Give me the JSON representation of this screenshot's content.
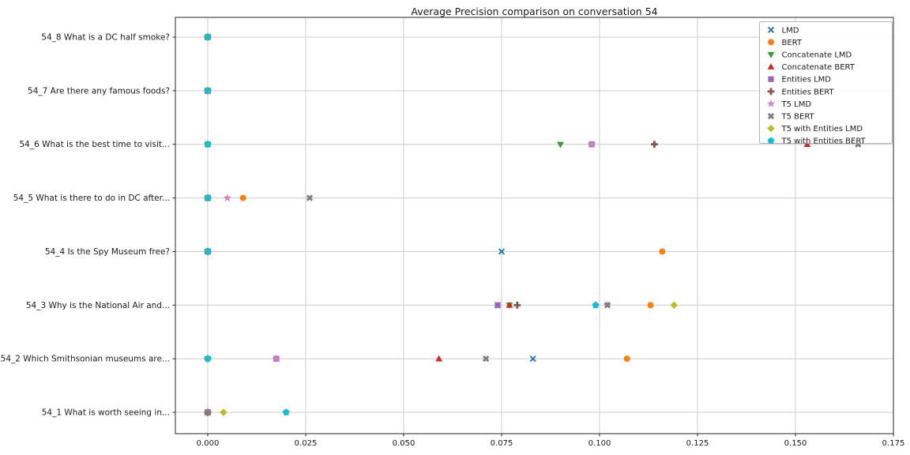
{
  "chart_data": {
    "type": "scatter",
    "title": "Average Precision comparison on conversation 54",
    "xlabel": "",
    "ylabel": "",
    "grid": true,
    "legend_position": "upper right",
    "xlim": [
      -0.0083,
      0.175
    ],
    "x_ticks": [
      0.0,
      0.025,
      0.05,
      0.075,
      0.1,
      0.125,
      0.15,
      0.175
    ],
    "x_tick_labels": [
      "0.000",
      "0.025",
      "0.050",
      "0.075",
      "0.100",
      "0.125",
      "0.150",
      "0.175"
    ],
    "categories_top_to_bottom": [
      "54_8 What is a DC half smoke?",
      "54_7 Are there any famous foods?",
      "54_6 What is the best time to visit...",
      "54_5 What is there to do in DC after...",
      "54_4 Is the Spy Museum free?",
      "54_3 Why is the National Air and...",
      "54_2 Which Smithsonian museums are...",
      "54_1 What is worth seeing in..."
    ],
    "series": [
      {
        "name": "LMD",
        "marker": "x",
        "color": "#1f77b4",
        "values": [
          0,
          0,
          0,
          0,
          0.075,
          0.074,
          0.083,
          0
        ]
      },
      {
        "name": "BERT",
        "marker": "circle",
        "color": "#ff7f0e",
        "values": [
          0,
          0,
          0,
          0.009,
          0.116,
          0.113,
          0.107,
          0
        ]
      },
      {
        "name": "Concatenate LMD",
        "marker": "triangle-down",
        "color": "#2ca02c",
        "values": [
          0,
          0,
          0.09,
          0,
          0,
          0.077,
          0,
          0
        ]
      },
      {
        "name": "Concatenate BERT",
        "marker": "triangle-up",
        "color": "#d62728",
        "values": [
          0,
          0,
          0.153,
          0,
          0,
          0.077,
          0.059,
          0
        ]
      },
      {
        "name": "Entities LMD",
        "marker": "square",
        "color": "#9467bd",
        "values": [
          0,
          0,
          0.098,
          0,
          0,
          0.074,
          0.0175,
          0
        ]
      },
      {
        "name": "Entities BERT",
        "marker": "plus",
        "color": "#8c564b",
        "values": [
          0,
          0,
          0.114,
          0,
          0,
          0.079,
          0,
          0
        ]
      },
      {
        "name": "T5 LMD",
        "marker": "star",
        "color": "#e377c2",
        "values": [
          0,
          0,
          0.098,
          0.005,
          0,
          0.102,
          0.0175,
          0
        ]
      },
      {
        "name": "T5 BERT",
        "marker": "thick-x",
        "color": "#7f7f7f",
        "values": [
          0,
          0,
          0.166,
          0.026,
          0,
          0.102,
          0.071,
          0
        ]
      },
      {
        "name": "T5 with Entities LMD",
        "marker": "diamond",
        "color": "#bcbd22",
        "values": [
          0,
          0,
          0,
          0,
          0,
          0.119,
          0,
          0.004
        ]
      },
      {
        "name": "T5 with Entities BERT",
        "marker": "pentagon",
        "color": "#17becf",
        "values": [
          0,
          0,
          0,
          0,
          0,
          0.099,
          0,
          0.02
        ]
      }
    ],
    "style": {
      "grid_color": "#cccccc",
      "spine_color": "#262626",
      "legend_border_color": "#b3b3b3",
      "legend_bg_color": "#ffffff",
      "text_color": "#1a1a1a"
    }
  }
}
